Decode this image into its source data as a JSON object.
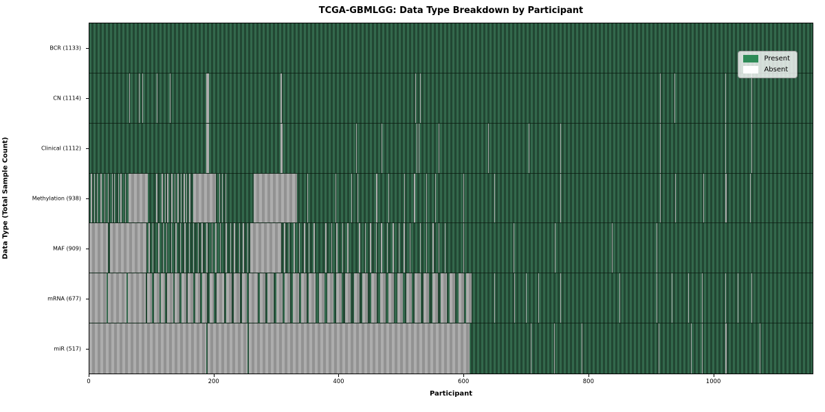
{
  "chart_data": {
    "type": "heatmap",
    "title": "TCGA-GBMLGG: Data Type Breakdown by Participant",
    "xlabel": "Participant",
    "ylabel": "Data Type (Total Sample Count)",
    "x_ticks": [
      0,
      200,
      400,
      600,
      800,
      1000
    ],
    "xlim": [
      0,
      1160
    ],
    "grid": false,
    "legend": {
      "position": "upper right",
      "items": [
        {
          "label": "Present",
          "color": "#2e8b57"
        },
        {
          "label": "Absent",
          "color": "#ffffff"
        }
      ]
    },
    "colors": {
      "present_fill": "#2e8b57",
      "present_stripe_light": "#33684c",
      "present_stripe_dark": "#224733",
      "absent_stripe_light": "#adadad",
      "absent_stripe_dark": "#929292",
      "axes_edge": "#000000"
    },
    "rows": [
      {
        "label": "BCR",
        "present_count": 1133,
        "tick_label": "BCR (1133)",
        "absent_runs": []
      },
      {
        "label": "CN",
        "present_count": 1114,
        "tick_label": "CN (1114)",
        "absent_runs": [
          [
            64,
            65
          ],
          [
            79,
            80
          ],
          [
            85,
            86
          ],
          [
            108,
            109
          ],
          [
            129,
            130
          ],
          [
            188,
            192
          ],
          [
            263,
            264
          ],
          [
            307,
            309
          ],
          [
            523,
            524
          ],
          [
            530,
            531
          ],
          [
            915,
            916
          ],
          [
            938,
            939
          ],
          [
            1020,
            1021
          ],
          [
            1062,
            1063
          ],
          [
            1100,
            1101
          ]
        ]
      },
      {
        "label": "Clinical",
        "present_count": 1112,
        "tick_label": "Clinical (1112)",
        "absent_runs": [
          [
            91,
            92
          ],
          [
            188,
            192
          ],
          [
            263,
            264
          ],
          [
            307,
            310
          ],
          [
            428,
            429
          ],
          [
            469,
            470
          ],
          [
            525,
            526
          ],
          [
            528,
            529
          ],
          [
            560,
            561
          ],
          [
            640,
            641
          ],
          [
            705,
            706
          ],
          [
            755,
            756
          ],
          [
            915,
            916
          ],
          [
            1020,
            1021
          ],
          [
            1062,
            1063
          ],
          [
            1100,
            1101
          ]
        ]
      },
      {
        "label": "Methylation",
        "present_count": 938,
        "tick_label": "Methylation (938)",
        "absent_runs": [
          [
            2,
            4
          ],
          [
            8,
            9
          ],
          [
            12,
            13
          ],
          [
            18,
            20
          ],
          [
            24,
            25
          ],
          [
            30,
            31
          ],
          [
            36,
            37
          ],
          [
            40,
            41
          ],
          [
            46,
            47
          ],
          [
            50,
            52
          ],
          [
            57,
            58
          ],
          [
            63,
            94
          ],
          [
            107,
            109
          ],
          [
            112,
            113
          ],
          [
            116,
            118
          ],
          [
            121,
            122
          ],
          [
            125,
            127
          ],
          [
            131,
            133
          ],
          [
            137,
            138
          ],
          [
            141,
            143
          ],
          [
            147,
            148
          ],
          [
            151,
            153
          ],
          [
            156,
            157
          ],
          [
            160,
            162
          ],
          [
            167,
            203
          ],
          [
            208,
            209
          ],
          [
            213,
            214
          ],
          [
            218,
            219
          ],
          [
            263,
            333
          ],
          [
            350,
            351
          ],
          [
            370,
            371
          ],
          [
            395,
            396
          ],
          [
            420,
            421
          ],
          [
            430,
            431
          ],
          [
            460,
            462
          ],
          [
            480,
            481
          ],
          [
            505,
            506
          ],
          [
            521,
            523
          ],
          [
            540,
            541
          ],
          [
            555,
            556
          ],
          [
            600,
            601
          ],
          [
            650,
            651
          ],
          [
            755,
            756
          ],
          [
            915,
            916
          ],
          [
            940,
            941
          ],
          [
            985,
            986
          ],
          [
            1020,
            1022
          ],
          [
            1060,
            1061
          ],
          [
            1090,
            1091
          ]
        ]
      },
      {
        "label": "MAF",
        "present_count": 909,
        "tick_label": "MAF (909)",
        "absent_runs": [
          [
            0,
            30
          ],
          [
            33,
            92
          ],
          [
            95,
            97
          ],
          [
            101,
            103
          ],
          [
            110,
            112
          ],
          [
            118,
            119
          ],
          [
            123,
            125
          ],
          [
            131,
            132
          ],
          [
            138,
            140
          ],
          [
            146,
            147
          ],
          [
            152,
            154
          ],
          [
            160,
            161
          ],
          [
            166,
            168
          ],
          [
            174,
            175
          ],
          [
            180,
            182
          ],
          [
            188,
            190
          ],
          [
            196,
            197
          ],
          [
            202,
            204
          ],
          [
            210,
            211
          ],
          [
            218,
            220
          ],
          [
            226,
            227
          ],
          [
            232,
            234
          ],
          [
            240,
            241
          ],
          [
            246,
            248
          ],
          [
            254,
            255
          ],
          [
            258,
            308
          ],
          [
            312,
            314
          ],
          [
            320,
            321
          ],
          [
            328,
            330
          ],
          [
            336,
            337
          ],
          [
            344,
            346
          ],
          [
            352,
            353
          ],
          [
            360,
            362
          ],
          [
            370,
            371
          ],
          [
            378,
            380
          ],
          [
            388,
            389
          ],
          [
            396,
            398
          ],
          [
            406,
            407
          ],
          [
            414,
            416
          ],
          [
            424,
            425
          ],
          [
            432,
            434
          ],
          [
            442,
            443
          ],
          [
            450,
            452
          ],
          [
            460,
            461
          ],
          [
            468,
            470
          ],
          [
            478,
            479
          ],
          [
            486,
            488
          ],
          [
            496,
            497
          ],
          [
            504,
            506
          ],
          [
            514,
            515
          ],
          [
            530,
            532
          ],
          [
            540,
            541
          ],
          [
            550,
            552
          ],
          [
            560,
            561
          ],
          [
            570,
            571
          ],
          [
            600,
            601
          ],
          [
            680,
            681
          ],
          [
            747,
            748
          ],
          [
            838,
            839
          ],
          [
            910,
            911
          ],
          [
            1100,
            1101
          ]
        ]
      },
      {
        "label": "mRNA",
        "present_count": 677,
        "tick_label": "mRNA (677)",
        "absent_runs": [
          [
            0,
            28
          ],
          [
            30,
            60
          ],
          [
            62,
            90
          ],
          [
            93,
            100
          ],
          [
            104,
            112
          ],
          [
            115,
            121
          ],
          [
            125,
            134
          ],
          [
            137,
            144
          ],
          [
            148,
            155
          ],
          [
            158,
            166
          ],
          [
            170,
            177
          ],
          [
            181,
            189
          ],
          [
            193,
            200
          ],
          [
            204,
            216
          ],
          [
            219,
            228
          ],
          [
            232,
            241
          ],
          [
            245,
            252
          ],
          [
            256,
            270
          ],
          [
            273,
            282
          ],
          [
            286,
            296
          ],
          [
            300,
            310
          ],
          [
            313,
            322
          ],
          [
            326,
            336
          ],
          [
            340,
            348
          ],
          [
            352,
            363
          ],
          [
            368,
            377
          ],
          [
            382,
            391
          ],
          [
            396,
            405
          ],
          [
            410,
            419
          ],
          [
            424,
            433
          ],
          [
            438,
            447
          ],
          [
            452,
            461
          ],
          [
            466,
            475
          ],
          [
            480,
            489
          ],
          [
            494,
            503
          ],
          [
            508,
            517
          ],
          [
            522,
            531
          ],
          [
            536,
            545
          ],
          [
            550,
            559
          ],
          [
            564,
            573
          ],
          [
            578,
            587
          ],
          [
            592,
            601
          ],
          [
            604,
            613
          ],
          [
            650,
            651
          ],
          [
            681,
            682
          ],
          [
            700,
            701
          ],
          [
            720,
            721
          ],
          [
            755,
            756
          ],
          [
            800,
            801
          ],
          [
            850,
            851
          ],
          [
            886,
            887
          ],
          [
            910,
            911
          ],
          [
            934,
            935
          ],
          [
            960,
            961
          ],
          [
            983,
            984
          ],
          [
            1020,
            1021
          ],
          [
            1040,
            1041
          ],
          [
            1062,
            1063
          ],
          [
            1100,
            1101
          ]
        ]
      },
      {
        "label": "miR",
        "present_count": 517,
        "tick_label": "miR (517)",
        "absent_runs": [
          [
            0,
            188
          ],
          [
            190,
            254
          ],
          [
            256,
            610
          ],
          [
            660,
            661
          ],
          [
            708,
            709
          ],
          [
            745,
            746
          ],
          [
            790,
            791
          ],
          [
            913,
            914
          ],
          [
            965,
            966
          ],
          [
            983,
            984
          ],
          [
            1020,
            1022
          ],
          [
            1075,
            1076
          ]
        ]
      }
    ]
  }
}
